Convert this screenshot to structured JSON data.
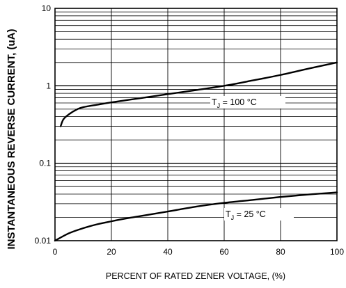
{
  "chart_data": {
    "type": "line",
    "title": "",
    "xlabel": "PERCENT OF RATED ZENER VOLTAGE, (%)",
    "ylabel": "INSTANTANEOUS REVERSE CURRENT, (uA)",
    "xlim": [
      0,
      100
    ],
    "ylim": [
      0.01,
      10
    ],
    "yscale": "log",
    "grid": true,
    "x_ticks": [
      "0",
      "20",
      "40",
      "60",
      "80",
      "100"
    ],
    "y_ticks": [
      "0.01",
      "0.1",
      "1",
      "10"
    ],
    "series": [
      {
        "name_main": "T",
        "name_sub": "J",
        "name_rest": " = 100 °C",
        "x": [
          2,
          3,
          5,
          8,
          10,
          15,
          20,
          30,
          40,
          50,
          60,
          70,
          80,
          90,
          100
        ],
        "y": [
          0.3,
          0.37,
          0.43,
          0.5,
          0.53,
          0.57,
          0.61,
          0.69,
          0.78,
          0.88,
          1.0,
          1.17,
          1.38,
          1.67,
          2.0
        ]
      },
      {
        "name_main": "T",
        "name_sub": "J",
        "name_rest": " = 25 °C",
        "x": [
          0,
          5,
          10,
          15,
          20,
          25,
          30,
          40,
          50,
          60,
          70,
          80,
          90,
          100
        ],
        "y": [
          0.01,
          0.0125,
          0.0145,
          0.0163,
          0.0178,
          0.0193,
          0.0207,
          0.0238,
          0.0275,
          0.0308,
          0.0336,
          0.0367,
          0.0395,
          0.042
        ]
      }
    ]
  }
}
